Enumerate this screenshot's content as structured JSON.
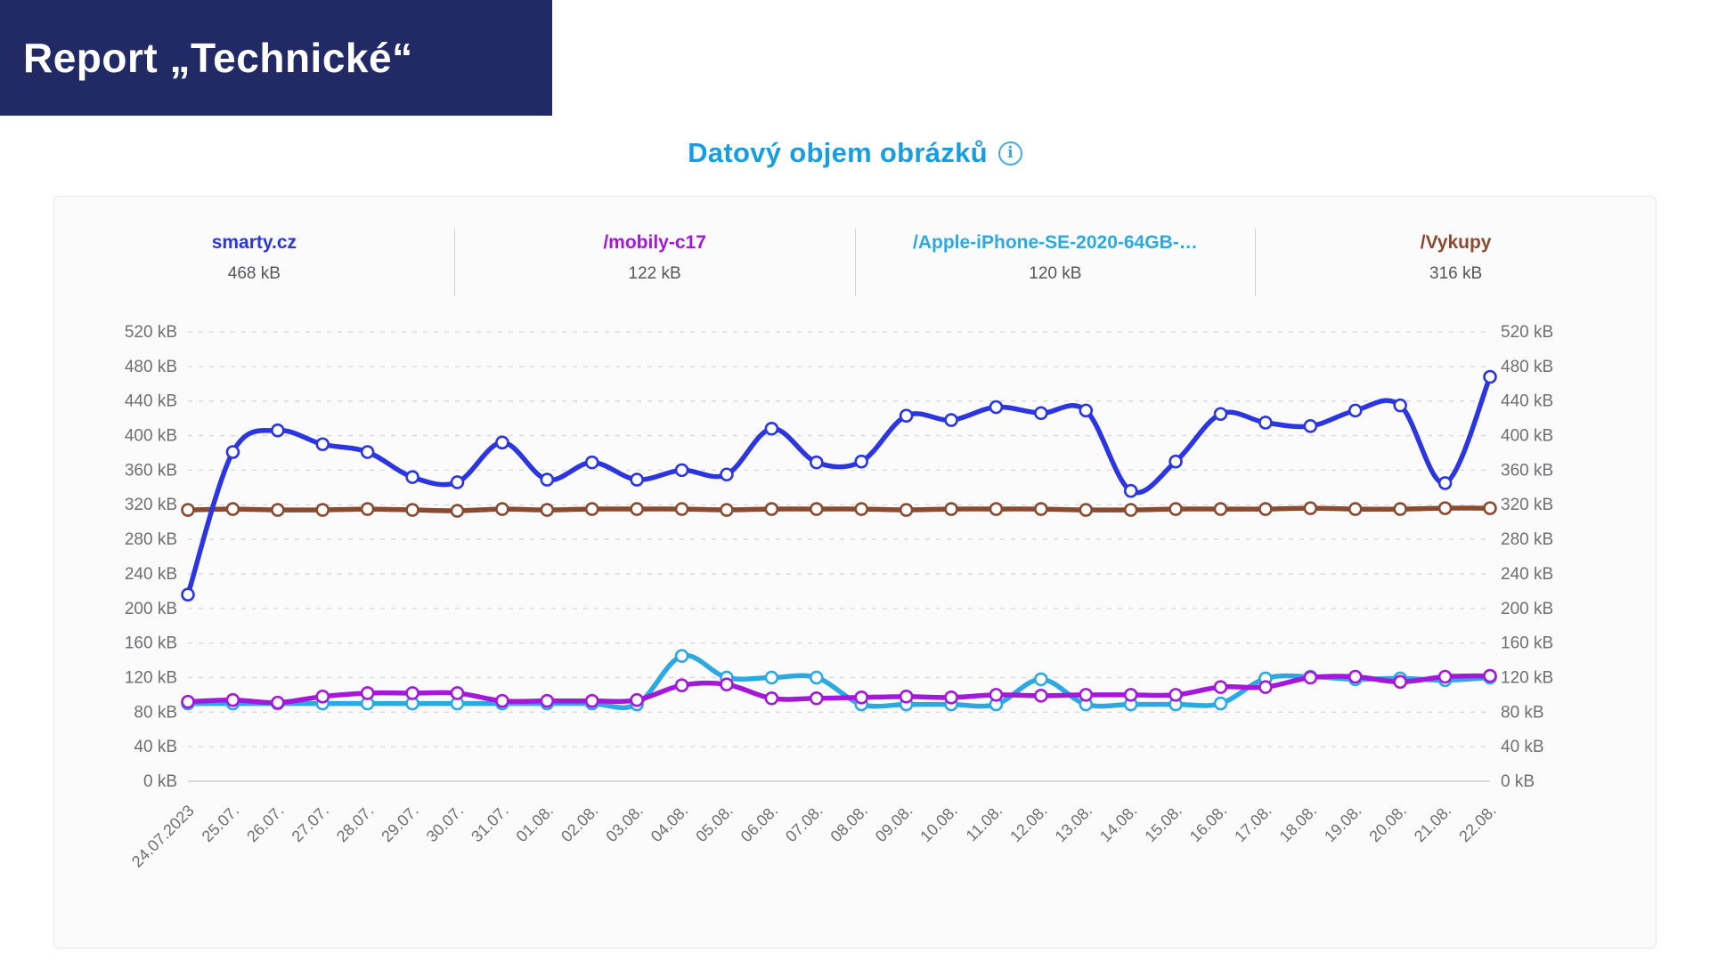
{
  "header": {
    "title": "Report „Technické“"
  },
  "chart": {
    "title": "Datový objem obrázků",
    "info_icon": "i"
  },
  "chart_data": {
    "type": "line",
    "title": "Datový objem obrázků",
    "unit": "kB",
    "ylim": [
      0,
      520
    ],
    "ytick_step": 40,
    "grid": "dashed horizontal, solid zero line, dual y-axis labels",
    "legend_position": "top",
    "x": [
      "24.07.2023",
      "25.07.",
      "26.07.",
      "27.07.",
      "28.07.",
      "29.07.",
      "30.07.",
      "31.07.",
      "01.08.",
      "02.08.",
      "03.08.",
      "04.08.",
      "05.08.",
      "06.08.",
      "07.08.",
      "08.08.",
      "09.08.",
      "10.08.",
      "11.08.",
      "12.08.",
      "13.08.",
      "14.08.",
      "15.08.",
      "16.08.",
      "17.08.",
      "18.08.",
      "19.08.",
      "20.08.",
      "21.08.",
      "22.08."
    ],
    "series": [
      {
        "name": "smarty.cz",
        "current": "468 kB",
        "color": "#2c36e0",
        "values": [
          216,
          381,
          406,
          390,
          381,
          352,
          346,
          392,
          349,
          369,
          349,
          360,
          355,
          408,
          369,
          370,
          423,
          418,
          433,
          426,
          429,
          336,
          370,
          425,
          415,
          411,
          429,
          435,
          345,
          468
        ]
      },
      {
        "name": "/mobily-c17",
        "current": "122 kB",
        "color": "#a318da",
        "values": [
          92,
          94,
          91,
          98,
          102,
          102,
          102,
          93,
          93,
          93,
          94,
          111,
          112,
          96,
          96,
          97,
          98,
          97,
          100,
          99,
          100,
          100,
          100,
          109,
          109,
          120,
          121,
          115,
          121,
          122
        ]
      },
      {
        "name": "/Apple-iPhone-SE-2020-64GB-…",
        "current": "120 kB",
        "color": "#2ba9e0",
        "values": [
          90,
          90,
          90,
          90,
          90,
          90,
          90,
          90,
          90,
          90,
          89,
          145,
          120,
          120,
          120,
          89,
          89,
          89,
          89,
          118,
          89,
          89,
          89,
          90,
          119,
          121,
          118,
          119,
          117,
          120
        ]
      },
      {
        "name": "/Vykupy",
        "current": "316 kB",
        "color": "#8a4a2f",
        "values": [
          314,
          315,
          314,
          314,
          315,
          314,
          313,
          315,
          314,
          315,
          315,
          315,
          314,
          315,
          315,
          315,
          314,
          315,
          315,
          315,
          314,
          314,
          315,
          315,
          315,
          316,
          315,
          315,
          316,
          316
        ]
      }
    ],
    "axis_label_color": "#6e6e73",
    "gridline_color": "#d7d7da",
    "zeroline_color": "#c2c2c6"
  }
}
